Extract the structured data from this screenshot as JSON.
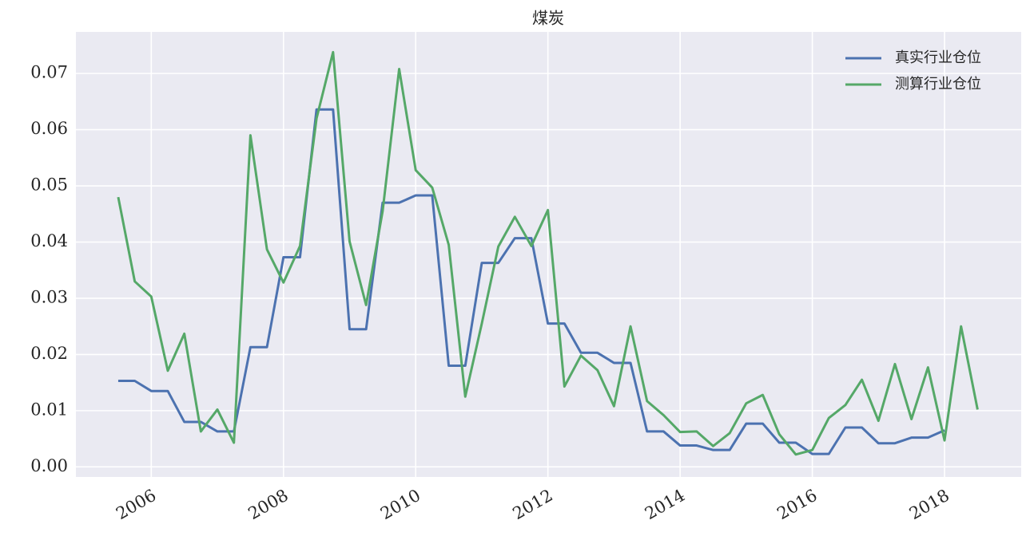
{
  "chart_data": {
    "type": "line",
    "title": "煤炭",
    "x": [
      2005.5,
      2005.75,
      2006,
      2006.25,
      2006.5,
      2006.75,
      2007,
      2007.25,
      2007.5,
      2007.75,
      2008,
      2008.25,
      2008.5,
      2008.75,
      2009,
      2009.25,
      2009.5,
      2009.75,
      2010,
      2010.25,
      2010.5,
      2010.75,
      2011,
      2011.25,
      2011.5,
      2011.75,
      2012,
      2012.25,
      2012.5,
      2012.75,
      2013,
      2013.25,
      2013.5,
      2013.75,
      2014,
      2014.25,
      2014.5,
      2014.75,
      2015,
      2015.25,
      2015.5,
      2015.75,
      2016,
      2016.25,
      2016.5,
      2016.75,
      2017,
      2017.25,
      2017.5,
      2017.75,
      2018,
      2018.25,
      2018.5
    ],
    "series": [
      {
        "name": "真实行业仓位",
        "color": "#4c72b0",
        "values": [
          0.0153,
          0.0153,
          0.0135,
          0.0135,
          0.008,
          0.008,
          0.0063,
          0.0063,
          0.0213,
          0.0213,
          0.0373,
          0.0373,
          0.0636,
          0.0636,
          0.0245,
          0.0245,
          0.047,
          0.047,
          0.0483,
          0.0483,
          0.018,
          0.018,
          0.0363,
          0.0363,
          0.0407,
          0.0407,
          0.0255,
          0.0255,
          0.0203,
          0.0203,
          0.0185,
          0.0185,
          0.0063,
          0.0063,
          0.0038,
          0.0038,
          0.003,
          0.003,
          0.0077,
          0.0077,
          0.0043,
          0.0043,
          0.0023,
          0.0023,
          0.007,
          0.007,
          0.0042,
          0.0042,
          0.0052,
          0.0052,
          0.0065,
          null,
          null
        ]
      },
      {
        "name": "测算行业仓位",
        "color": "#55a868",
        "values": [
          0.048,
          0.033,
          0.0303,
          0.0171,
          0.0237,
          0.0063,
          0.0102,
          0.0043,
          0.059,
          0.0387,
          0.0328,
          0.0393,
          0.062,
          0.0738,
          0.0401,
          0.0288,
          0.0455,
          0.0708,
          0.0528,
          0.0497,
          0.0395,
          0.0125,
          0.0255,
          0.0392,
          0.0445,
          0.0393,
          0.0457,
          0.0143,
          0.0198,
          0.0172,
          0.0108,
          0.025,
          0.0117,
          0.0092,
          0.0062,
          0.0063,
          0.0037,
          0.006,
          0.0113,
          0.0128,
          0.0058,
          0.0022,
          0.003,
          0.0087,
          0.011,
          0.0155,
          0.0082,
          0.0183,
          0.0085,
          0.0177,
          0.0047,
          0.025,
          0.0102
        ]
      }
    ],
    "xlim": [
      2004.86,
      2019.16
    ],
    "xticks": [
      2006,
      2008,
      2010,
      2012,
      2014,
      2016,
      2018
    ],
    "ylim": [
      -0.0018,
      0.0774
    ],
    "yticks": [
      {
        "value": 0,
        "label": "0.00"
      },
      {
        "value": 0.01,
        "label": "0.01"
      },
      {
        "value": 0.02,
        "label": "0.02"
      },
      {
        "value": 0.03,
        "label": "0.03"
      },
      {
        "value": 0.04,
        "label": "0.04"
      },
      {
        "value": 0.05,
        "label": "0.05"
      },
      {
        "value": 0.06,
        "label": "0.06"
      },
      {
        "value": 0.07,
        "label": "0.07"
      }
    ],
    "grid": true,
    "legend": "upper right"
  }
}
